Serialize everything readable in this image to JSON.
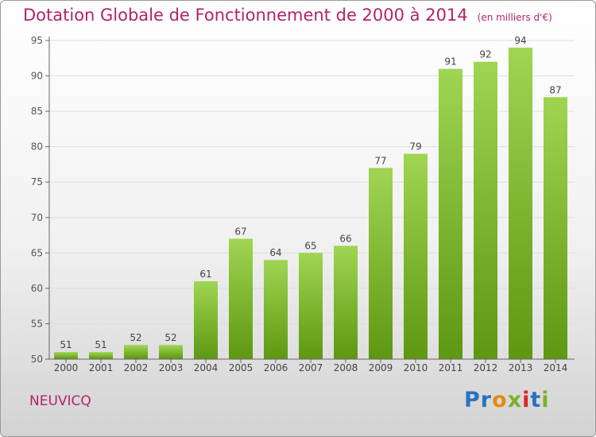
{
  "title": "Dotation Globale de Fonctionnement de 2000 à 2014",
  "subtitle": "(en milliers d'€)",
  "location": "NEUVICQ",
  "brand": {
    "text": "Proxiti",
    "colors": [
      "#2a72c2",
      "#2a72c2",
      "#e38a14",
      "#7bb028",
      "#d8262a",
      "#2a72c2",
      "#7bb028"
    ]
  },
  "colors": {
    "bar_top": "#9fd552",
    "bar_bottom": "#5e9712",
    "axis": "#666666",
    "grid": "#dddddd"
  },
  "chart_data": {
    "type": "bar",
    "categories": [
      "2000",
      "2001",
      "2002",
      "2003",
      "2004",
      "2005",
      "2006",
      "2007",
      "2008",
      "2009",
      "2010",
      "2011",
      "2012",
      "2013",
      "2014"
    ],
    "values": [
      51,
      51,
      52,
      52,
      61,
      67,
      64,
      65,
      66,
      77,
      79,
      91,
      92,
      94,
      87
    ],
    "ylim": [
      50,
      95
    ],
    "yticks": [
      50,
      55,
      60,
      65,
      70,
      75,
      80,
      85,
      90,
      95
    ],
    "grid": true
  }
}
